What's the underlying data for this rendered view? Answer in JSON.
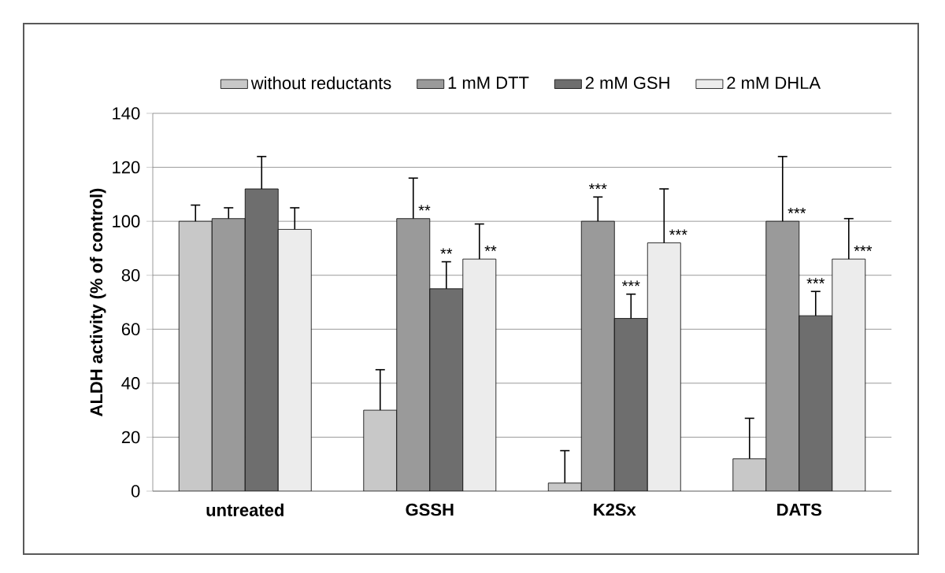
{
  "chart_data": {
    "type": "bar",
    "ylabel": "ALDH activity (% of control)",
    "categories": [
      "untreated",
      "GSSH",
      "K2Sx",
      "DATS"
    ],
    "series": [
      {
        "name": "without reductants",
        "color": "#c8c8c8",
        "values": [
          100,
          30,
          3,
          12
        ],
        "errors": [
          [
            100,
            106
          ],
          [
            30,
            45
          ],
          [
            3,
            15
          ],
          [
            12,
            27
          ]
        ]
      },
      {
        "name": "1 mM DTT",
        "color": "#9a9a9a",
        "values": [
          101,
          101,
          100,
          100
        ],
        "errors": [
          [
            101,
            105
          ],
          [
            101,
            116
          ],
          [
            100,
            109
          ],
          [
            100,
            124
          ]
        ],
        "value_labels": [
          null,
          "**",
          "***",
          "***"
        ]
      },
      {
        "name": "2 mM GSH",
        "color": "#6e6e6e",
        "values": [
          112,
          75,
          64,
          65
        ],
        "errors": [
          [
            112,
            124
          ],
          [
            75,
            85
          ],
          [
            64,
            73
          ],
          [
            65,
            74
          ]
        ],
        "value_labels": [
          null,
          "**",
          "***",
          "***"
        ]
      },
      {
        "name": "2 mM DHLA",
        "color": "#ececec",
        "values": [
          97,
          86,
          92,
          86
        ],
        "errors": [
          [
            97,
            105
          ],
          [
            86,
            99
          ],
          [
            92,
            112
          ],
          [
            86,
            101
          ]
        ],
        "value_labels": [
          null,
          "**",
          "***",
          "***"
        ]
      }
    ],
    "ylim": [
      0,
      140
    ],
    "yticks": [
      0,
      20,
      40,
      60,
      80,
      100,
      120,
      140
    ],
    "grid": "y",
    "legend": "top"
  }
}
